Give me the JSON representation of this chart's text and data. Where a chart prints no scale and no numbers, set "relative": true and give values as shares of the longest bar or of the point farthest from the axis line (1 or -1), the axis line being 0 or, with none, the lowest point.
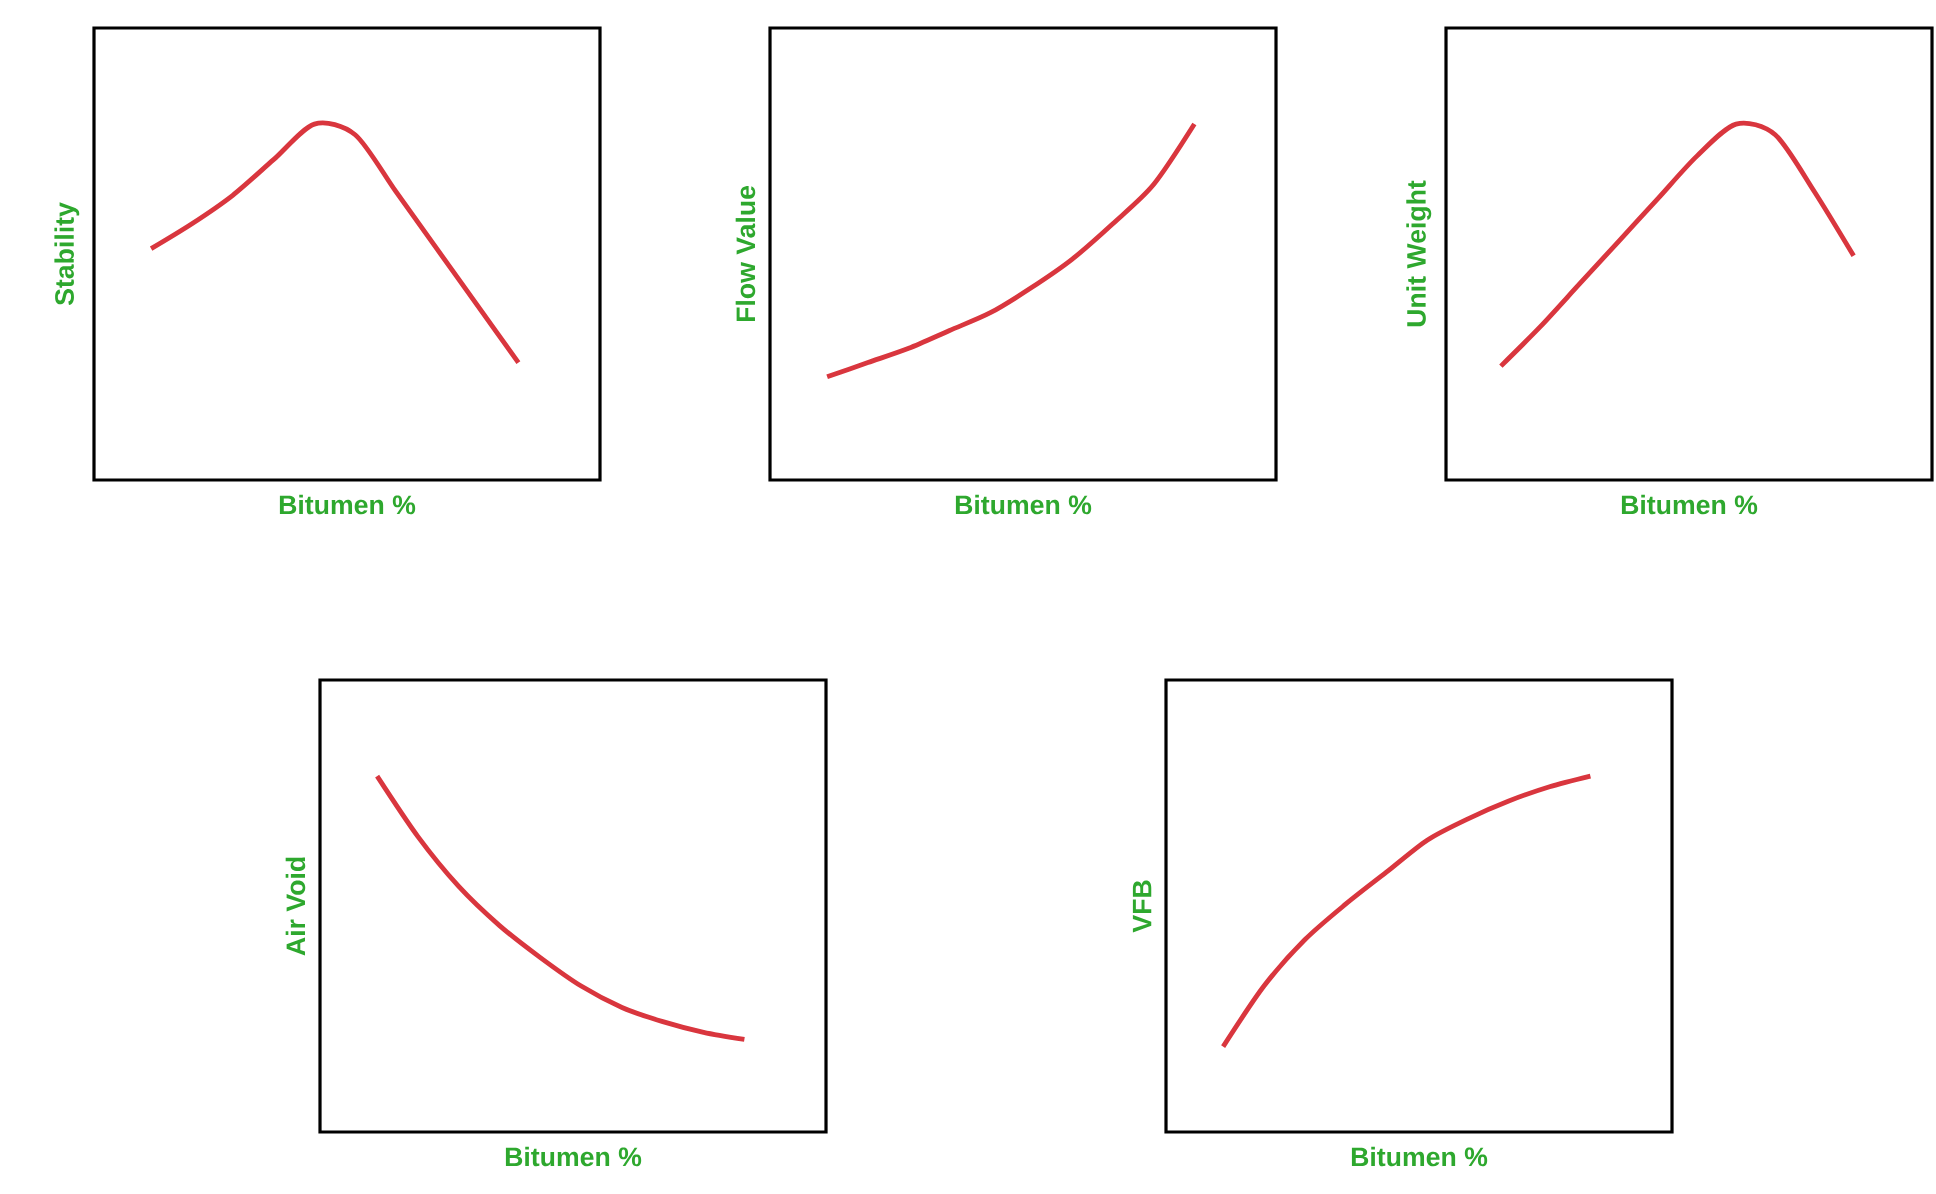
{
  "chart_data": [
    {
      "type": "line",
      "xlabel": "Bitumen %",
      "ylabel": "Stability",
      "categories": [
        null,
        null,
        null,
        null,
        null,
        null,
        null,
        null,
        null,
        null
      ],
      "relative": true,
      "series": [
        {
          "color": "#d9363e",
          "values": [
            0.65,
            0.72,
            0.8,
            0.9,
            1,
            0.97,
            0.81,
            0.65,
            0.49,
            0.33
          ]
        }
      ]
    },
    {
      "type": "line",
      "xlabel": "Bitumen %",
      "ylabel": "Flow Value",
      "categories": [
        null,
        null,
        null,
        null,
        null,
        null,
        null,
        null,
        null,
        null
      ],
      "relative": true,
      "series": [
        {
          "color": "#d9363e",
          "values": [
            0.29,
            0.33,
            0.37,
            0.42,
            0.47,
            0.54,
            0.62,
            0.72,
            0.83,
            1
          ]
        }
      ]
    },
    {
      "type": "line",
      "xlabel": "Bitumen %",
      "ylabel": "Unit Weight",
      "categories": [
        null,
        null,
        null,
        null,
        null,
        null,
        null,
        null,
        null,
        null
      ],
      "relative": true,
      "series": [
        {
          "color": "#d9363e",
          "values": [
            0.32,
            0.43,
            0.55,
            0.67,
            0.79,
            0.91,
            1,
            0.97,
            0.81,
            0.63
          ]
        }
      ]
    },
    {
      "type": "line",
      "xlabel": "Bitumen %",
      "ylabel": "Air Void",
      "categories": [
        null,
        null,
        null,
        null,
        null,
        null,
        null,
        null,
        null,
        null
      ],
      "relative": true,
      "series": [
        {
          "color": "#d9363e",
          "values": [
            1,
            0.83,
            0.69,
            0.58,
            0.49,
            0.41,
            0.35,
            0.31,
            0.28,
            0.26
          ]
        }
      ]
    },
    {
      "type": "line",
      "xlabel": "Bitumen %",
      "ylabel": "VFB",
      "categories": [
        null,
        null,
        null,
        null,
        null,
        null,
        null,
        null,
        null,
        null
      ],
      "relative": true,
      "series": [
        {
          "color": "#d9363e",
          "values": [
            0.24,
            0.41,
            0.54,
            0.64,
            0.73,
            0.82,
            0.88,
            0.93,
            0.97,
            1
          ]
        }
      ]
    }
  ]
}
